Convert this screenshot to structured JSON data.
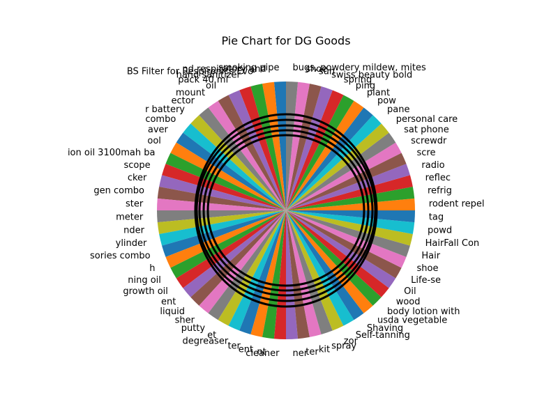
{
  "chart_data": {
    "type": "pie",
    "title": "Pie Chart for DG Goods",
    "legend": "none",
    "note_on_values": "Slices appear equal in size; individual values are not printed on the chart.",
    "slice_colors": [
      "#1f77b4",
      "#ff7f0e",
      "#2ca02c",
      "#d62728",
      "#9467bd",
      "#8c564b",
      "#e377c2",
      "#7f7f7f",
      "#bcbd22",
      "#17becf"
    ],
    "slices": [
      {
        "label": "smoking pipe",
        "value": 1
      },
      {
        "label": "nd respiratory and",
        "value": 1
      },
      {
        "label": "BS Filter for Respironics Evo",
        "value": 1
      },
      {
        "label": "hand sanitizer",
        "value": 1
      },
      {
        "label": "pack 40 ml",
        "value": 1
      },
      {
        "label": "oil",
        "value": 1
      },
      {
        "label": "mount",
        "value": 1
      },
      {
        "label": "ector",
        "value": 1
      },
      {
        "label": "r battery",
        "value": 1
      },
      {
        "label": "combo",
        "value": 1
      },
      {
        "label": "aver",
        "value": 1
      },
      {
        "label": "ool",
        "value": 1
      },
      {
        "label": "ion oil 3100mah ba",
        "value": 1
      },
      {
        "label": "scope",
        "value": 1
      },
      {
        "label": "cker",
        "value": 1
      },
      {
        "label": "gen combo",
        "value": 1
      },
      {
        "label": "ster",
        "value": 1
      },
      {
        "label": "meter",
        "value": 1
      },
      {
        "label": "nder",
        "value": 1
      },
      {
        "label": "ylinder",
        "value": 1
      },
      {
        "label": "sories combo",
        "value": 1
      },
      {
        "label": "h",
        "value": 1
      },
      {
        "label": "ning oil",
        "value": 1
      },
      {
        "label": "growth oil",
        "value": 1
      },
      {
        "label": "ent",
        "value": 1
      },
      {
        "label": "liquid",
        "value": 1
      },
      {
        "label": "sher",
        "value": 1
      },
      {
        "label": "putty",
        "value": 1
      },
      {
        "label": "et",
        "value": 1
      },
      {
        "label": "degreaser",
        "value": 1
      },
      {
        "label": "ter",
        "value": 1
      },
      {
        "label": "ent",
        "value": 1
      },
      {
        "label": "nt",
        "value": 1
      },
      {
        "label": "cleaner",
        "value": 1
      },
      {
        "label": "ner",
        "value": 1
      },
      {
        "label": "ter",
        "value": 1
      },
      {
        "label": "kit",
        "value": 1
      },
      {
        "label": "spray",
        "value": 1
      },
      {
        "label": "zor",
        "value": 1
      },
      {
        "label": "Self-tanning",
        "value": 1
      },
      {
        "label": "Shaving",
        "value": 1
      },
      {
        "label": "usda vegetable",
        "value": 1
      },
      {
        "label": "body lotion with",
        "value": 1
      },
      {
        "label": "wood",
        "value": 1
      },
      {
        "label": "Oil",
        "value": 1
      },
      {
        "label": "Life-se",
        "value": 1
      },
      {
        "label": "shoe",
        "value": 1
      },
      {
        "label": "Hair",
        "value": 1
      },
      {
        "label": "HairFall Con",
        "value": 1
      },
      {
        "label": "powd",
        "value": 1
      },
      {
        "label": "tag",
        "value": 1
      },
      {
        "label": "rodent repel",
        "value": 1
      },
      {
        "label": "refrig",
        "value": 1
      },
      {
        "label": "reflec",
        "value": 1
      },
      {
        "label": "radio",
        "value": 1
      },
      {
        "label": "scre",
        "value": 1
      },
      {
        "label": "screwdr",
        "value": 1
      },
      {
        "label": "sat phone",
        "value": 1
      },
      {
        "label": "personal care",
        "value": 1
      },
      {
        "label": "pane",
        "value": 1
      },
      {
        "label": "pow",
        "value": 1
      },
      {
        "label": "plant",
        "value": 1
      },
      {
        "label": "ping",
        "value": 1
      },
      {
        "label": "spring",
        "value": 1
      },
      {
        "label": "swiss beauty bold",
        "value": 1
      },
      {
        "label": "sun",
        "value": 1
      },
      {
        "label": "shoe",
        "value": 1
      },
      {
        "label": "bugs, powdery mildew, mites",
        "value": 1
      }
    ]
  }
}
